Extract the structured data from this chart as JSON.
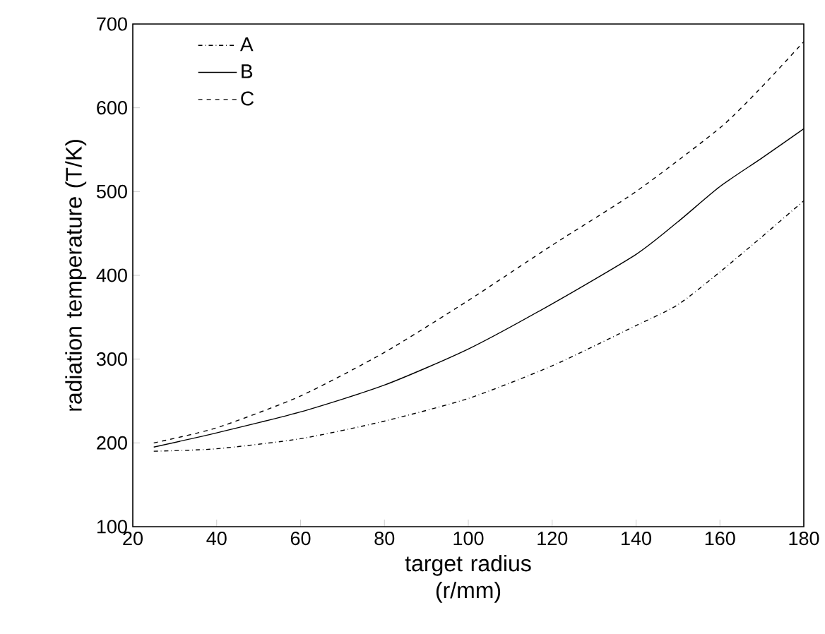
{
  "chart_data": {
    "type": "line",
    "xlabel": "target radius (r/mm)",
    "ylabel": "radiation temperature (T/K)",
    "xlim": [
      20,
      180
    ],
    "ylim": [
      100,
      700
    ],
    "xticks": [
      20,
      40,
      60,
      80,
      100,
      120,
      140,
      160,
      180
    ],
    "yticks": [
      100,
      200,
      300,
      400,
      500,
      600,
      700
    ],
    "grid": false,
    "legend": "top left",
    "marker": "none",
    "series": [
      {
        "name": "A",
        "color": "#000000",
        "line_style": "dashdot",
        "x": [
          25,
          40,
          60,
          80,
          100,
          120,
          140,
          150,
          160,
          170,
          180
        ],
        "values": [
          190,
          193,
          205,
          226,
          253,
          292,
          340,
          365,
          404,
          446,
          489
        ]
      },
      {
        "name": "B",
        "color": "#000000",
        "line_style": "solid",
        "x": [
          25,
          40,
          60,
          80,
          100,
          120,
          140,
          150,
          160,
          170,
          180
        ],
        "values": [
          195,
          212,
          237,
          269,
          312,
          366,
          425,
          464,
          506,
          540,
          575
        ]
      },
      {
        "name": "C",
        "color": "#000000",
        "line_style": "dashed",
        "x": [
          25,
          40,
          60,
          80,
          100,
          120,
          140,
          160,
          170,
          180
        ],
        "values": [
          200,
          218,
          256,
          308,
          370,
          436,
          500,
          576,
          625,
          679
        ]
      }
    ]
  }
}
